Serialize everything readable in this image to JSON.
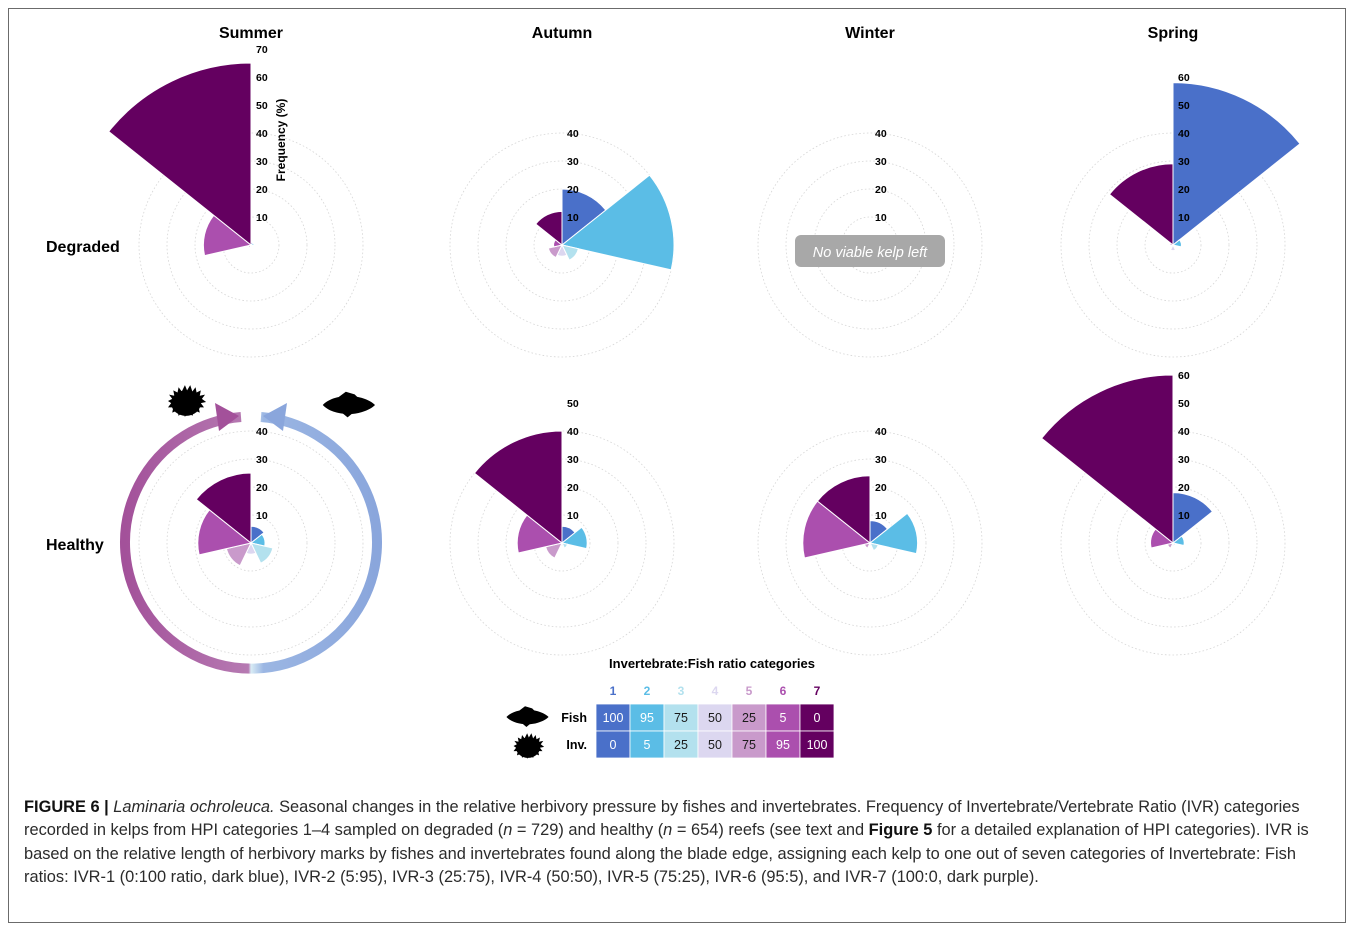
{
  "figure_label": "FIGURE 6 |",
  "caption": {
    "species": "Laminaria ochroleuca.",
    "seg1": " Seasonal changes in the relative herbivory pressure by fishes and invertebrates. Frequency of Invertebrate/Vertebrate Ratio (IVR) categories recorded in kelps from HPI categories 1–4 sampled on degraded (",
    "n_deg": "n",
    "seg2": " = 729) and healthy (",
    "n_hea": "n",
    "seg3": " = 654) reefs (see text and ",
    "fig_ref": "Figure 5",
    "seg4": " for a detailed explanation of HPI categories). IVR is based on the relative length of herbivory marks by fishes and invertebrates found along the blade edge, assigning each kelp to one out of seven categories of Invertebrate: Fish ratios: IVR-1 (0:100 ratio, dark blue), IVR-2 (5:95), IVR-3 (25:75), IVR-4 (50:50), IVR-5 (75:25), IVR-6 (95:5), and IVR-7 (100:0, dark purple)."
  },
  "chart_data": {
    "type": "polar-bar",
    "seasons": [
      "Summer",
      "Autumn",
      "Winter",
      "Spring"
    ],
    "reef_types": [
      "Degraded",
      "Healthy"
    ],
    "radial_axis_label": "Frequency (%)",
    "categories": [
      "1",
      "2",
      "3",
      "4",
      "5",
      "6",
      "7"
    ],
    "category_colors": [
      "#4a70c9",
      "#5bbde6",
      "#b3e1ee",
      "#dcd7f0",
      "#c99acb",
      "#ab4fae",
      "#640060"
    ],
    "no_data_note": "No viable kelp left",
    "panels": [
      {
        "row": "Degraded",
        "season": "Summer",
        "rmax": 70,
        "ticks": [
          "10",
          "20",
          "30",
          "40",
          "50",
          "60",
          "70"
        ],
        "values": [
          1,
          1,
          0,
          0,
          1,
          17,
          65
        ],
        "show_axis_label": true
      },
      {
        "row": "Degraded",
        "season": "Autumn",
        "rmax": 40,
        "ticks": [
          "10",
          "20",
          "30",
          "40"
        ],
        "values": [
          20,
          40,
          6,
          4,
          5,
          3,
          12
        ]
      },
      {
        "row": "Degraded",
        "season": "Winter",
        "rmax": 40,
        "ticks": [
          "10",
          "20",
          "30",
          "40"
        ],
        "values": [
          0,
          0,
          0,
          0,
          0,
          0,
          0
        ],
        "no_data": true
      },
      {
        "row": "Degraded",
        "season": "Spring",
        "rmax": 60,
        "ticks": [
          "10",
          "20",
          "30",
          "40",
          "50",
          "60"
        ],
        "values": [
          58,
          3,
          0,
          2,
          0,
          1,
          29
        ]
      },
      {
        "row": "Healthy",
        "season": "Summer",
        "rmax": 40,
        "ticks": [
          "10",
          "20",
          "30",
          "40"
        ],
        "values": [
          6,
          5,
          8,
          4,
          9,
          19,
          25
        ],
        "show_arrows": true
      },
      {
        "row": "Healthy",
        "season": "Autumn",
        "rmax": 50,
        "ticks": [
          "10",
          "20",
          "30",
          "40",
          "50"
        ],
        "values": [
          6,
          9,
          2,
          1,
          6,
          16,
          40
        ]
      },
      {
        "row": "Healthy",
        "season": "Winter",
        "rmax": 40,
        "ticks": [
          "10",
          "20",
          "30",
          "40"
        ],
        "values": [
          8,
          17,
          3,
          1,
          2,
          24,
          24
        ]
      },
      {
        "row": "Healthy",
        "season": "Spring",
        "rmax": 60,
        "ticks": [
          "10",
          "20",
          "30",
          "40",
          "50",
          "60"
        ],
        "values": [
          18,
          4,
          1,
          1,
          2,
          8,
          60
        ]
      }
    ],
    "legend": {
      "title": "Invertebrate:Fish ratio categories",
      "labels": [
        "1",
        "2",
        "3",
        "4",
        "5",
        "6",
        "7"
      ],
      "rows": [
        {
          "name": "Fish",
          "values": [
            "100",
            "95",
            "75",
            "50",
            "25",
            "5",
            "0"
          ]
        },
        {
          "name": "Inv.",
          "values": [
            "0",
            "5",
            "25",
            "50",
            "75",
            "95",
            "100"
          ]
        }
      ]
    }
  }
}
